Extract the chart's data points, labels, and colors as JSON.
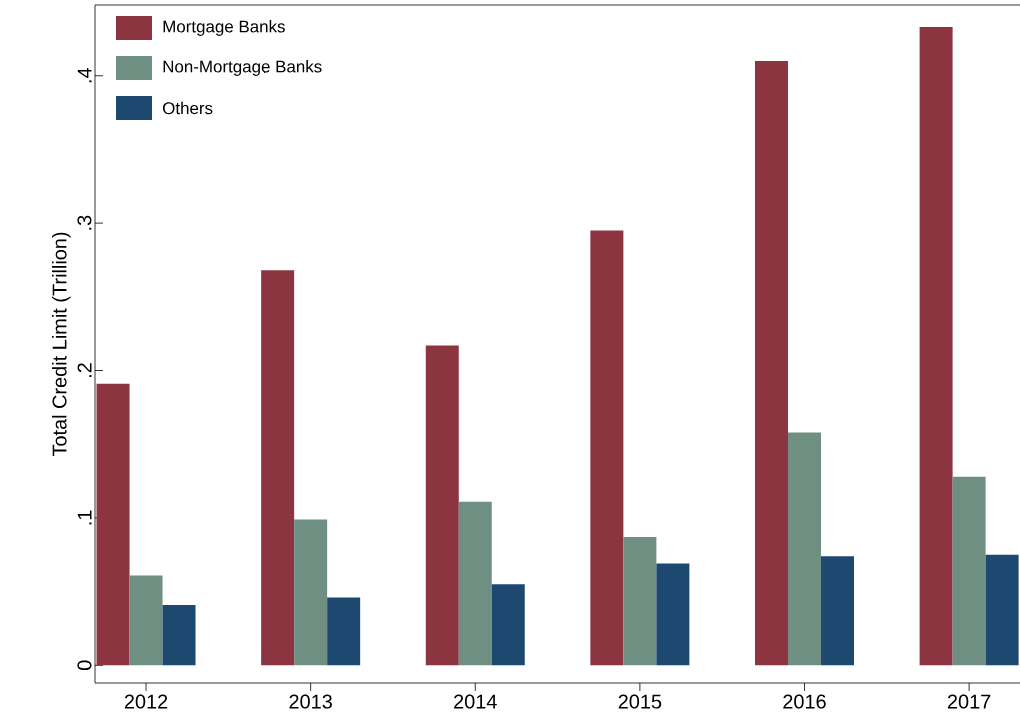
{
  "chart_data": {
    "type": "bar",
    "ylabel": "Total Credit Limit (Trillion)",
    "categories": [
      "2012",
      "2013",
      "2014",
      "2015",
      "2016",
      "2017"
    ],
    "series": [
      {
        "name": "Mortgage Banks",
        "color": "#8c3440",
        "values": [
          0.191,
          0.268,
          0.217,
          0.295,
          0.41,
          0.433
        ]
      },
      {
        "name": "Non-Mortgage Banks",
        "color": "#6f8f82",
        "values": [
          0.061,
          0.099,
          0.111,
          0.087,
          0.158,
          0.128
        ]
      },
      {
        "name": "Others",
        "color": "#1d4870",
        "values": [
          0.041,
          0.046,
          0.055,
          0.069,
          0.074,
          0.075
        ]
      }
    ],
    "ylim": [
      -0.012,
      0.448
    ],
    "yticks": [
      0,
      {
        "value": 0.1,
        "label": ".1"
      },
      {
        "value": 0.2,
        "label": ".2"
      },
      {
        "value": 0.3,
        "label": ".3"
      },
      {
        "value": 0.4,
        "label": ".4"
      }
    ],
    "grid": false,
    "legend": "top left"
  }
}
